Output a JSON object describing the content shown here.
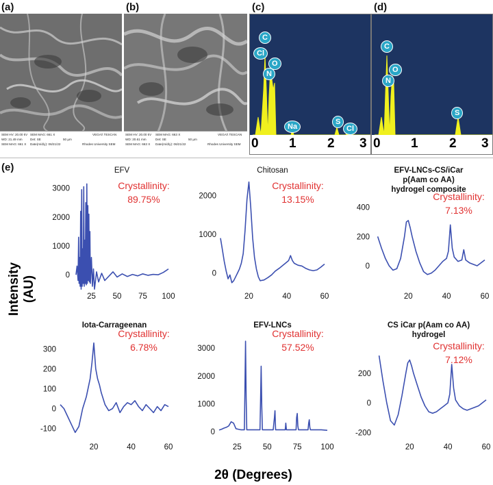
{
  "panels": {
    "a": "(a)",
    "b": "(b)",
    "c": "(c)",
    "d": "(d)",
    "e": "(e)"
  },
  "sem": [
    {
      "hv": "SEM HV: 20.00 kV",
      "wd": "WD: 21.49 mm",
      "mag": "SEM MAG: 661 X",
      "mag2": "SEM MAG: 661 X",
      "det": "Det: SE",
      "date": "Date(m/d/y): 06/21/22",
      "scale": "50 µm",
      "brand": "VEGA\\\\ TESCAN",
      "univ": "Rhodes University SEM"
    },
    {
      "hv": "SEM HV: 20.00 kV",
      "wd": "WD: 20.61 mm",
      "mag": "SEM MAG: 663 X",
      "mag2": "SEM MAG: 663 X",
      "det": "Det: SE",
      "date": "Date(m/d/y): 06/21/22",
      "scale": "50 µm",
      "brand": "VEGA\\\\ TESCAN",
      "univ": "Rhodes University SEM"
    }
  ],
  "edx": {
    "ticks": [
      "0",
      "1",
      "2",
      "3"
    ],
    "c_badges": [
      "C",
      "Cl",
      "O",
      "N",
      "Na",
      "S",
      "Cl"
    ],
    "d_badges": [
      "C",
      "O",
      "N",
      "S"
    ]
  },
  "axis": {
    "ylabel": "Intensity (AU)",
    "xlabel": "2θ (Degrees)"
  },
  "chart_data": [
    {
      "type": "line",
      "title": "EFV",
      "crystallinity_label": "Crystallinity:",
      "crystallinity": "89.75%",
      "xlim": [
        8,
        100
      ],
      "ylim": [
        -450,
        3350
      ],
      "xticks": [
        "25",
        "50",
        "75",
        "100"
      ],
      "xtick_values": [
        25,
        50,
        75,
        100
      ],
      "yticks": [
        "0",
        "1000",
        "2000",
        "3000"
      ],
      "ytick_values": [
        0,
        1000,
        2000,
        3000
      ],
      "x": [
        10,
        11,
        12,
        12.5,
        13,
        13.5,
        14,
        14.5,
        15,
        15.5,
        16,
        16.5,
        17,
        17.5,
        18,
        18.5,
        19,
        19.5,
        20,
        20.5,
        21,
        21.5,
        22,
        22.5,
        23,
        23.5,
        24,
        25,
        26,
        27,
        28,
        30,
        32,
        35,
        38,
        42,
        46,
        50,
        55,
        60,
        65,
        70,
        75,
        80,
        85,
        90,
        95,
        98,
        100
      ],
      "y": [
        0,
        300,
        -200,
        1300,
        -300,
        600,
        -400,
        2200,
        -500,
        2950,
        -400,
        900,
        -300,
        3050,
        -400,
        1200,
        -300,
        2500,
        -350,
        3150,
        -300,
        2400,
        -200,
        2100,
        -250,
        1500,
        -300,
        600,
        -400,
        200,
        -500,
        100,
        -250,
        50,
        -200,
        -50,
        100,
        -80,
        30,
        -60,
        10,
        -40,
        30,
        -20,
        10,
        0,
        80,
        150,
        200
      ]
    },
    {
      "type": "line",
      "title": "Chitosan",
      "crystallinity_label": "Crystallinity:",
      "crystallinity": "13.15%",
      "xlim": [
        5,
        60
      ],
      "ylim": [
        -380,
        2450
      ],
      "xticks": [
        "20",
        "40",
        "60"
      ],
      "xtick_values": [
        20,
        40,
        60
      ],
      "yticks": [
        "0",
        "1000",
        "2000"
      ],
      "ytick_values": [
        0,
        1000,
        2000
      ],
      "x": [
        5,
        6,
        7,
        8,
        9,
        10,
        11,
        12,
        13,
        14,
        15,
        16,
        17,
        18,
        19,
        20,
        21,
        22,
        23,
        24,
        25,
        26,
        28,
        30,
        32,
        34,
        36,
        38,
        40,
        41,
        42,
        43,
        44,
        46,
        48,
        50,
        52,
        54,
        56,
        58,
        60
      ],
      "y": [
        900,
        600,
        300,
        50,
        -150,
        -50,
        -250,
        -200,
        -100,
        0,
        100,
        250,
        500,
        1100,
        1900,
        2350,
        1700,
        900,
        400,
        100,
        -100,
        -200,
        -180,
        -120,
        -50,
        50,
        120,
        200,
        280,
        320,
        450,
        320,
        250,
        200,
        180,
        120,
        80,
        60,
        80,
        150,
        230
      ]
    },
    {
      "type": "line",
      "title": "EFV-LNCs-CS/iCar p(Aam co AA) hydrogel composite",
      "title_lines": [
        "EFV-LNCs-CS/iCar",
        "p(Aam co AA)",
        "hydrogel composite"
      ],
      "crystallinity_label": "Crystallinity:",
      "crystallinity": "7.13%",
      "xlim": [
        2,
        60
      ],
      "ylim": [
        -150,
        450
      ],
      "xticks": [
        "20",
        "40",
        "60"
      ],
      "xtick_values": [
        20,
        40,
        60
      ],
      "yticks": [
        "0",
        "200",
        "400"
      ],
      "ytick_values": [
        0,
        200,
        400
      ],
      "x": [
        4,
        6,
        8,
        10,
        12,
        14,
        16,
        18,
        19,
        20,
        21,
        22,
        24,
        26,
        28,
        30,
        32,
        34,
        36,
        38,
        40,
        41,
        42,
        43,
        44,
        46,
        48,
        49,
        50,
        52,
        54,
        56,
        58,
        60
      ],
      "y": [
        200,
        120,
        50,
        0,
        -30,
        -20,
        50,
        200,
        300,
        310,
        260,
        200,
        100,
        20,
        -40,
        -60,
        -50,
        -30,
        0,
        30,
        50,
        100,
        280,
        120,
        60,
        30,
        40,
        110,
        40,
        20,
        10,
        0,
        20,
        40
      ]
    },
    {
      "type": "line",
      "title": "Iota-Carrageenan",
      "crystallinity_label": "Crystallinity:",
      "crystallinity": "6.78%",
      "xlim": [
        2,
        60
      ],
      "ylim": [
        -150,
        360
      ],
      "xticks": [
        "20",
        "40",
        "60"
      ],
      "xtick_values": [
        20,
        40,
        60
      ],
      "yticks": [
        "-100",
        "0",
        "100",
        "200",
        "300"
      ],
      "ytick_values": [
        -100,
        0,
        100,
        200,
        300
      ],
      "x": [
        2,
        4,
        6,
        8,
        10,
        12,
        14,
        16,
        18,
        19,
        20,
        21,
        22,
        23,
        24,
        26,
        28,
        30,
        32,
        34,
        36,
        38,
        40,
        42,
        44,
        46,
        48,
        50,
        52,
        54,
        56,
        58,
        60
      ],
      "y": [
        20,
        0,
        -40,
        -80,
        -120,
        -90,
        0,
        60,
        150,
        230,
        330,
        200,
        150,
        120,
        80,
        20,
        -10,
        0,
        30,
        -20,
        10,
        30,
        20,
        40,
        10,
        -10,
        20,
        0,
        -20,
        10,
        -10,
        20,
        10
      ]
    },
    {
      "type": "line",
      "title": "EFV-LNCs",
      "crystallinity_label": "Crystallinity:",
      "crystallinity": "57.52%",
      "xlim": [
        10,
        100
      ],
      "ylim": [
        -250,
        3400
      ],
      "xticks": [
        "25",
        "50",
        "75",
        "100"
      ],
      "xtick_values": [
        25,
        50,
        75,
        100
      ],
      "yticks": [
        "0",
        "1000",
        "2000",
        "3000"
      ],
      "ytick_values": [
        0,
        1000,
        2000,
        3000
      ],
      "x": [
        10,
        12,
        14,
        16,
        18,
        20,
        22,
        24,
        26,
        28,
        30,
        31,
        31.5,
        32,
        32.5,
        33,
        36,
        40,
        44,
        44.5,
        45,
        45.5,
        46,
        50,
        55,
        56,
        56.5,
        57,
        60,
        65,
        65.5,
        66,
        70,
        74,
        74.5,
        75,
        75.5,
        76,
        80,
        84,
        84.5,
        85,
        85.5,
        86,
        90,
        95,
        100
      ],
      "y": [
        50,
        80,
        120,
        150,
        200,
        350,
        300,
        100,
        80,
        60,
        60,
        60,
        1500,
        3250,
        1200,
        60,
        60,
        60,
        60,
        1200,
        2350,
        900,
        60,
        60,
        60,
        500,
        750,
        60,
        60,
        60,
        300,
        60,
        60,
        60,
        500,
        650,
        200,
        60,
        60,
        60,
        300,
        420,
        150,
        60,
        60,
        60,
        40
      ]
    },
    {
      "type": "line",
      "title": "CS iCar p(Aam co AA) hydrogel",
      "title_lines": [
        "CS iCar p(Aam co AA)",
        "hydrogel"
      ],
      "crystallinity_label": "Crystallinity:",
      "crystallinity": "7.12%",
      "xlim": [
        2,
        60
      ],
      "ylim": [
        -240,
        380
      ],
      "xticks": [
        "20",
        "40",
        "60"
      ],
      "xtick_values": [
        20,
        40,
        60
      ],
      "yticks": [
        "-200",
        "0",
        "200"
      ],
      "ytick_values": [
        -200,
        0,
        200
      ],
      "x": [
        4,
        6,
        8,
        10,
        12,
        14,
        16,
        18,
        19,
        20,
        21,
        22,
        24,
        26,
        28,
        30,
        32,
        34,
        36,
        38,
        40,
        41,
        42,
        43,
        44,
        46,
        48,
        50,
        52,
        54,
        56,
        58,
        60
      ],
      "y": [
        320,
        150,
        0,
        -120,
        -150,
        -80,
        50,
        200,
        270,
        290,
        250,
        200,
        120,
        40,
        -20,
        -60,
        -70,
        -60,
        -40,
        -20,
        0,
        60,
        260,
        100,
        20,
        -20,
        -40,
        -50,
        -40,
        -30,
        -20,
        0,
        20
      ]
    }
  ]
}
